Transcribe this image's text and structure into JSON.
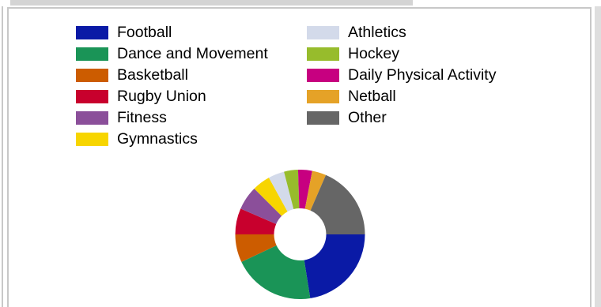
{
  "chart_data": {
    "type": "pie",
    "variant": "donut",
    "legend_placement": "top",
    "categories": [
      "Football",
      "Dance and Movement",
      "Basketball",
      "Rugby Union",
      "Fitness",
      "Gymnastics",
      "Athletics",
      "Hockey",
      "Daily Physical Activity",
      "Netball",
      "Other"
    ],
    "values": [
      22.5,
      20.5,
      7.0,
      6.5,
      6.0,
      4.5,
      4.0,
      3.5,
      3.5,
      3.5,
      18.5
    ],
    "colors": [
      "#0a1aa6",
      "#1a9457",
      "#cc5c00",
      "#c8002d",
      "#8b4f9a",
      "#f7d500",
      "#d3daea",
      "#97bc2c",
      "#c70080",
      "#e5a227",
      "#666666"
    ],
    "draw_order": [
      0,
      1,
      2,
      3,
      4,
      5,
      6,
      7,
      8,
      9,
      10
    ]
  }
}
